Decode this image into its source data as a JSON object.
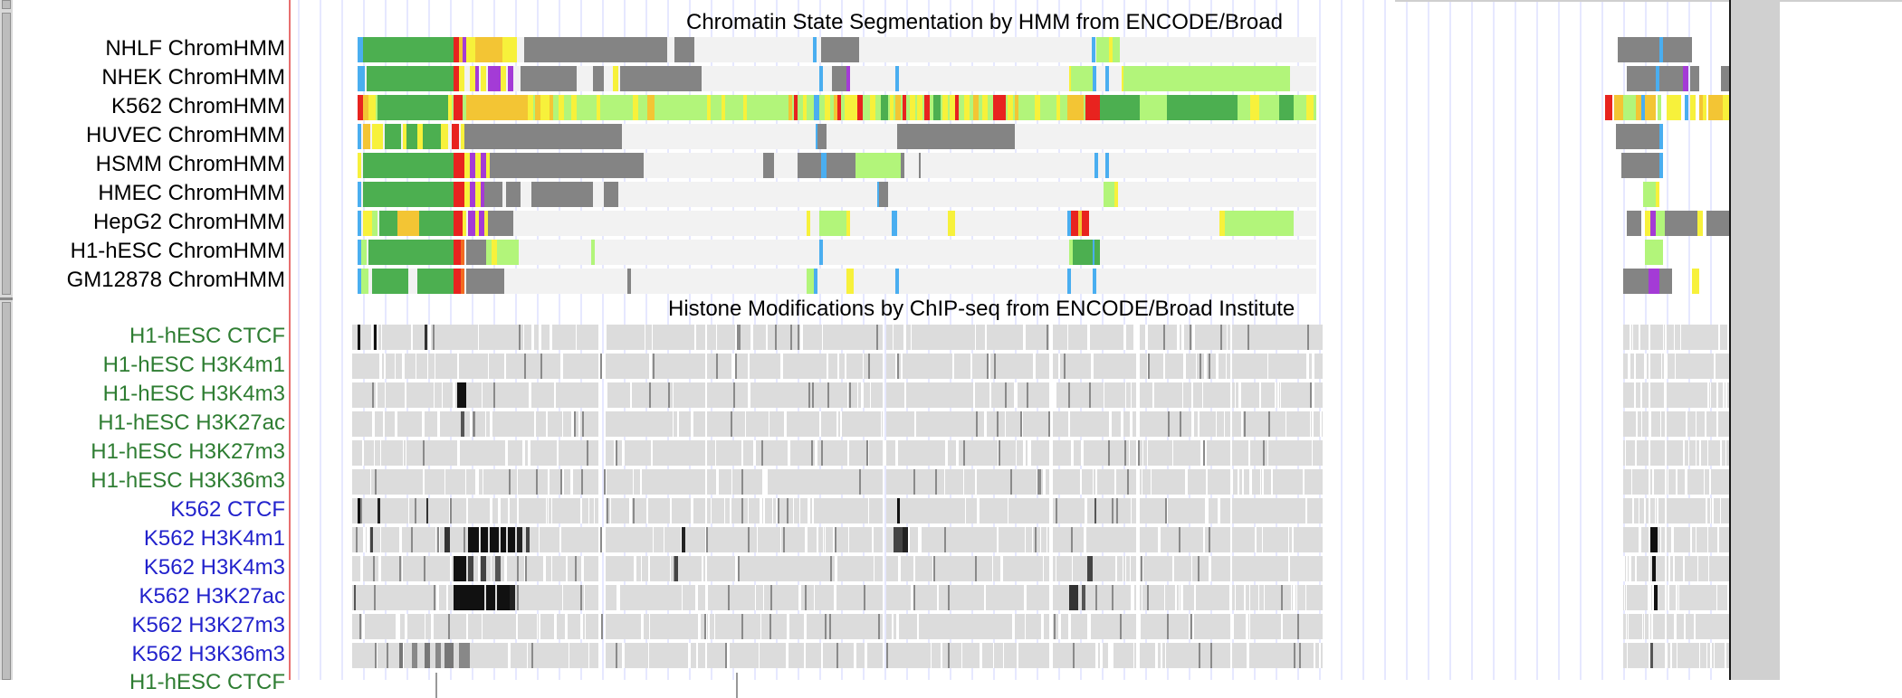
{
  "chromhmm_group": {
    "title": "Chromatin State Segmentation by HMM from ENCODE/Broad",
    "tracks": [
      {
        "label": "NHLF ChromHMM"
      },
      {
        "label": "NHEK ChromHMM"
      },
      {
        "label": "K562 ChromHMM"
      },
      {
        "label": "HUVEC ChromHMM"
      },
      {
        "label": "HSMM ChromHMM"
      },
      {
        "label": "HMEC ChromHMM"
      },
      {
        "label": "HepG2 ChromHMM"
      },
      {
        "label": "H1-hESC ChromHMM"
      },
      {
        "label": "GM12878 ChromHMM"
      }
    ]
  },
  "histone_group": {
    "title": "Histone Modifications by ChIP-seq from ENCODE/Broad Institute",
    "tracks": [
      {
        "label": "H1-hESC CTCF",
        "cell": "h1"
      },
      {
        "label": "H1-hESC H3K4m1",
        "cell": "h1"
      },
      {
        "label": "H1-hESC H3K4m3",
        "cell": "h1"
      },
      {
        "label": "H1-hESC H3K27ac",
        "cell": "h1"
      },
      {
        "label": "H1-hESC H3K27m3",
        "cell": "h1"
      },
      {
        "label": "H1-hESC H3K36m3",
        "cell": "h1"
      },
      {
        "label": "K562 CTCF",
        "cell": "k562"
      },
      {
        "label": "K562 H3K4m1",
        "cell": "k562"
      },
      {
        "label": "K562 H3K4m3",
        "cell": "k562"
      },
      {
        "label": "K562 H3K27ac",
        "cell": "k562"
      },
      {
        "label": "K562 H3K27m3",
        "cell": "k562"
      },
      {
        "label": "K562 H3K36m3",
        "cell": "k562"
      }
    ],
    "partial_label": "H1-hESC CTCF"
  },
  "colors": {
    "h1_label": "#2e7d32",
    "k562_label": "#2222cc",
    "chrom_label": "#000000",
    "active_promoter": "#e8231f",
    "weak_promoter": "#f26b21",
    "poised_promoter": "#a43bd6",
    "strong_enhancer": "#f3c534",
    "weak_enhancer": "#f7f13b",
    "insulator": "#4aaef0",
    "txn_transition": "#45ad48",
    "txn_elongation": "#4caf50",
    "weak_txn": "#b2f57a",
    "repressed": "#848484",
    "heterochrom": "#f2f2f2",
    "signal_bg": "#dcdcdc",
    "signal_peak": "#111111"
  }
}
